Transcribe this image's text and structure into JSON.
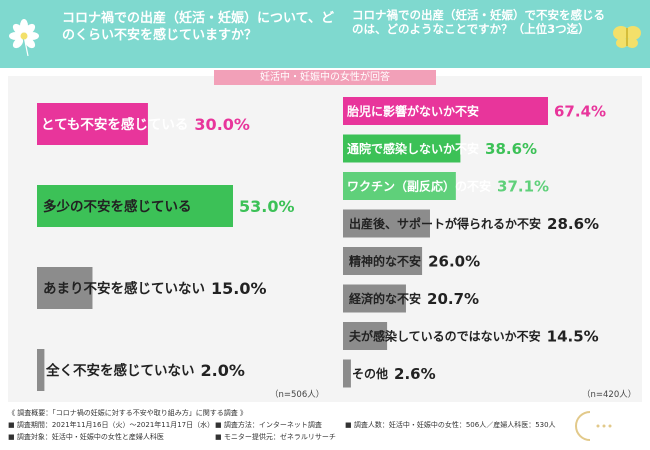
{
  "header": {
    "question_left": "コロナ禍での出産（妊活・妊娠）について、どのくらい不安を感じていますか？",
    "question_right": "コロナ禍での出産（妊活・妊娠）で不安を感じるのは、どのようなことですか？（上位3つ迄）"
  },
  "banner": "妊活中・妊娠中の女性が回答",
  "colors": {
    "header_bg": "#7fd9cf",
    "pink": "#e8359b",
    "green": "#3cc157",
    "light_green": "#5fd07a",
    "gray": "#8c8c8c",
    "panel_bg": "#f4f4f4"
  },
  "chart_data": [
    {
      "type": "bar",
      "categories": [
        "とても不安を感じている",
        "多少の不安を感じている",
        "あまり不安を感じていない",
        "全く不安を感じていない"
      ],
      "values": [
        30.0,
        53.0,
        15.0,
        2.0
      ],
      "value_labels": [
        "30.0%",
        "53.0%",
        "15.0%",
        "2.0%"
      ],
      "bar_colors": [
        "#e8359b",
        "#3cc157",
        "#8c8c8c",
        "#8c8c8c"
      ],
      "label_colors": [
        "#ffffff",
        "#222222",
        "#222222",
        "#222222"
      ],
      "value_colors": [
        "#e8359b",
        "#3cc157",
        "#222222",
        "#222222"
      ],
      "note": "（n=506人）",
      "xlim": [
        0,
        53
      ]
    },
    {
      "type": "bar",
      "categories": [
        "胎児に影響がないか不安",
        "通院で感染しないか不安",
        "ワクチン（副反応）の不安",
        "出産後、サポートが得られるか不安",
        "精神的な不安",
        "経済的な不安",
        "夫が感染しているのではないか不安",
        "その他"
      ],
      "values": [
        67.4,
        38.6,
        37.1,
        28.6,
        26.0,
        20.7,
        14.5,
        2.6
      ],
      "value_labels": [
        "67.4%",
        "38.6%",
        "37.1%",
        "28.6%",
        "26.0%",
        "20.7%",
        "14.5%",
        "2.6%"
      ],
      "bar_colors": [
        "#e8359b",
        "#3cc157",
        "#5fd07a",
        "#8c8c8c",
        "#8c8c8c",
        "#8c8c8c",
        "#8c8c8c",
        "#8c8c8c"
      ],
      "label_colors": [
        "#ffffff",
        "#ffffff",
        "#ffffff",
        "#222222",
        "#222222",
        "#222222",
        "#222222",
        "#222222"
      ],
      "value_colors": [
        "#e8359b",
        "#3cc157",
        "#5fd07a",
        "#222222",
        "#222222",
        "#222222",
        "#222222",
        "#222222"
      ],
      "note": "（n=420人）",
      "xlim": [
        0,
        67.4
      ]
    }
  ],
  "footer": {
    "l1a": "《 調査概要：「コロナ禍の妊娠に対する不安や取り組み方」に関する調査 》",
    "l2a": "■ 調査期間：2021年11月16日（火）～2021年11月17日（水）",
    "l2b": "■ 調査方法：インターネット調査",
    "l2c": "■ 調査人数：妊活中・妊娠中の女性：506人／産婦人科医：530人",
    "l3a": "■ 調査対象：妊活中・妊娠中の女性と産婦人科医",
    "l3b": "■ モニター提供元：ゼネラルリサーチ"
  }
}
